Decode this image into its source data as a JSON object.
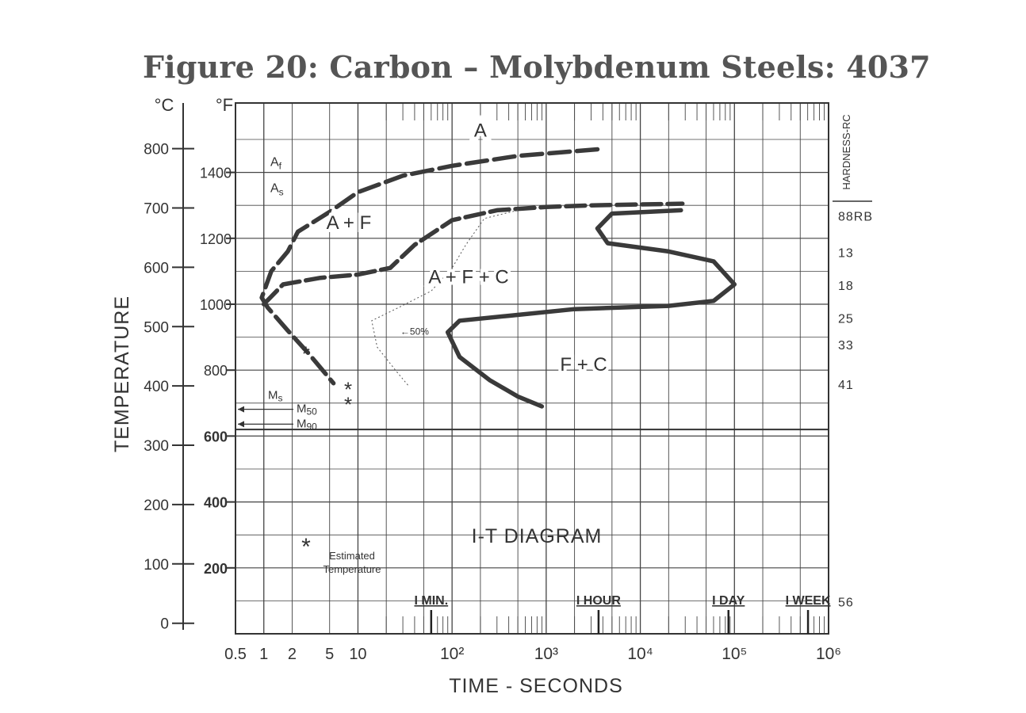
{
  "figure_title": "Figure 20: Carbon – Molybdenum Steels: 4037",
  "chart_data": {
    "type": "line",
    "title": "I-T DIAGRAM",
    "xlabel": "TIME - SECONDS",
    "ylabel": "TEMPERATURE",
    "x_scale": "log",
    "xlim": [
      0.5,
      1000000
    ],
    "ylim_F": [
      0,
      1550
    ],
    "ylim_C": [
      -18,
      843
    ],
    "grid": true,
    "x_ticks": [
      {
        "label": "0.5",
        "value": 0.5
      },
      {
        "label": "1",
        "value": 1
      },
      {
        "label": "2",
        "value": 2
      },
      {
        "label": "5",
        "value": 5
      },
      {
        "label": "10",
        "value": 10
      },
      {
        "label": "10²",
        "value": 100
      },
      {
        "label": "10³",
        "value": 1000
      },
      {
        "label": "10⁴",
        "value": 10000
      },
      {
        "label": "10⁵",
        "value": 100000
      },
      {
        "label": "10⁶",
        "value": 1000000
      }
    ],
    "y_ticks_C": [
      {
        "label": "800",
        "value": 800
      },
      {
        "label": "700",
        "value": 700
      },
      {
        "label": "600",
        "value": 600
      },
      {
        "label": "500",
        "value": 500
      },
      {
        "label": "400",
        "value": 400
      },
      {
        "label": "300",
        "value": 300
      },
      {
        "label": "200",
        "value": 200
      },
      {
        "label": "100",
        "value": 100
      },
      {
        "label": "0",
        "value": 0
      }
    ],
    "y_ticks_F": [
      {
        "label": "1400",
        "value": 1400
      },
      {
        "label": "1200",
        "value": 1200
      },
      {
        "label": "1000",
        "value": 1000
      },
      {
        "label": "800",
        "value": 800
      },
      {
        "label": "600",
        "value": 600
      },
      {
        "label": "400",
        "value": 400
      },
      {
        "label": "200",
        "value": 200
      }
    ],
    "unit_labels": {
      "celsius": "°C",
      "fahrenheit": "°F"
    },
    "hardness_axis": {
      "title": "HARDNESS-RC",
      "labels": [
        {
          "label": "88RB",
          "temp_F": 1270
        },
        {
          "label": "13",
          "temp_F": 1160
        },
        {
          "label": "18",
          "temp_F": 1060
        },
        {
          "label": "25",
          "temp_F": 960
        },
        {
          "label": "33",
          "temp_F": 880
        },
        {
          "label": "41",
          "temp_F": 760
        },
        {
          "label": "56",
          "temp_F": 100
        }
      ]
    },
    "time_markers": [
      {
        "label": "I MIN.",
        "value": 60
      },
      {
        "label": "I HOUR",
        "value": 3600
      },
      {
        "label": "I DAY",
        "value": 86400
      },
      {
        "label": "I WEEK",
        "value": 604800
      }
    ],
    "lines": [
      {
        "label": "Af",
        "temp_F": 1410,
        "x_end": 2.2
      },
      {
        "label": "As",
        "temp_F": 1330,
        "x_end": 2.6
      }
    ],
    "regions": [
      {
        "label": "A",
        "x": 200,
        "temp_F": 1530
      },
      {
        "label": "A + F",
        "x": 8,
        "temp_F": 1250
      },
      {
        "label": "A + F + C",
        "x": 150,
        "temp_F": 1085
      },
      {
        "label": "F + C",
        "x": 2500,
        "temp_F": 820
      }
    ],
    "curves": [
      {
        "id": "start",
        "style": "dashed-upper-solid-nose",
        "points": [
          [
            3500,
            1470
          ],
          [
            500,
            1450
          ],
          [
            100,
            1420
          ],
          [
            30,
            1390
          ],
          [
            10,
            1340
          ],
          [
            5,
            1280
          ],
          [
            2.3,
            1220
          ],
          [
            1.8,
            1160
          ],
          [
            1.2,
            1100
          ],
          [
            0.95,
            1020
          ],
          [
            1.1,
            990
          ],
          [
            1.8,
            920
          ],
          [
            3,
            850
          ],
          [
            5.5,
            760
          ]
        ]
      },
      {
        "id": "ferrite-start",
        "style": "dashed-left-solid",
        "points": [
          [
            1,
            1000
          ],
          [
            1.6,
            1060
          ],
          [
            4,
            1080
          ],
          [
            10,
            1090
          ],
          [
            22,
            1110
          ],
          [
            40,
            1180
          ],
          [
            100,
            1255
          ],
          [
            300,
            1285
          ],
          [
            1000,
            1295
          ],
          [
            3000,
            1300
          ],
          [
            28000,
            1305
          ]
        ]
      },
      {
        "id": "fifty-percent",
        "style": "dotted",
        "label": "50%",
        "label_x": 40,
        "label_temp_F": 920,
        "points": [
          [
            500,
            1285
          ],
          [
            220,
            1260
          ],
          [
            140,
            1180
          ],
          [
            100,
            1110
          ],
          [
            60,
            1040
          ],
          [
            25,
            985
          ],
          [
            14,
            950
          ],
          [
            16,
            870
          ],
          [
            25,
            800
          ],
          [
            35,
            750
          ]
        ]
      },
      {
        "id": "finish",
        "style": "solid-lower-dashed",
        "points": [
          [
            27000,
            1285
          ],
          [
            5000,
            1275
          ],
          [
            3500,
            1230
          ],
          [
            4500,
            1185
          ],
          [
            20000,
            1160
          ],
          [
            60000,
            1130
          ],
          [
            100000,
            1060
          ],
          [
            60000,
            1010
          ],
          [
            20000,
            995
          ],
          [
            2000,
            985
          ],
          [
            400,
            965
          ],
          [
            120,
            950
          ],
          [
            90,
            915
          ],
          [
            120,
            840
          ],
          [
            250,
            770
          ],
          [
            500,
            720
          ],
          [
            900,
            690
          ]
        ]
      }
    ],
    "transformation_points": [
      {
        "label": "Ms",
        "x": 2.4,
        "temp_F": 780
      },
      {
        "label": "M50",
        "x": 6,
        "temp_F": 710
      },
      {
        "label": "M90",
        "x": 6,
        "temp_F": 665
      }
    ],
    "legend": {
      "symbol": "*",
      "text_line1": "Estimated",
      "text_line2": "Temperature"
    }
  }
}
